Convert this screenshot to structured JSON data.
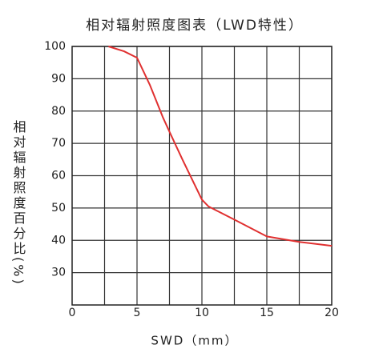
{
  "chart_data": {
    "type": "line",
    "title": "相对辐射照度图表（LWD特性）",
    "xlabel": "SWD（mm）",
    "ylabel": "相对辐射照度百分比(%)",
    "x": [
      2.8,
      4,
      5,
      6,
      7,
      7.5,
      8.5,
      10,
      10.5,
      12.5,
      15,
      17.5,
      20
    ],
    "series": [
      {
        "name": "LWD",
        "color": "#e03030",
        "values": [
          100,
          98.5,
          96.5,
          88,
          78,
          73.6,
          65,
          52.6,
          50.5,
          46.4,
          41.2,
          39.5,
          38.3
        ]
      }
    ],
    "xlim": [
      0,
      20
    ],
    "xticks": [
      0,
      5,
      10,
      15,
      20
    ],
    "x_gridlines": [
      2.5,
      5,
      7.5,
      10,
      12.5,
      15,
      17.5
    ],
    "ylim": [
      20,
      100
    ],
    "yticks": [
      30,
      40,
      50,
      60,
      70,
      80,
      90,
      100
    ],
    "grid": true
  }
}
